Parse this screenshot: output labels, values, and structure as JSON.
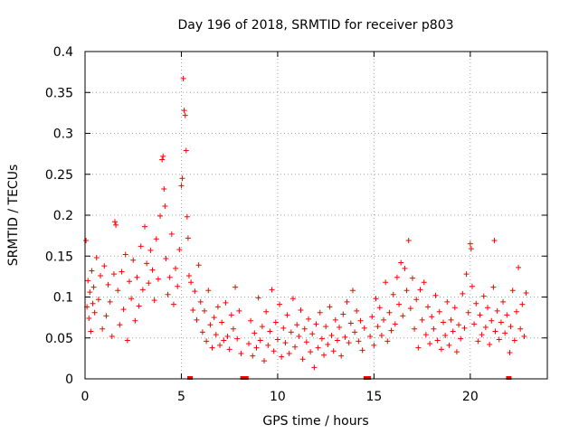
{
  "chart_data": {
    "type": "scatter",
    "title": "Day 196 of 2018, SRMTID for receiver p803",
    "xlabel": "GPS time / hours",
    "ylabel": "SRMTID / TECUs",
    "xlim": [
      0,
      24
    ],
    "ylim": [
      0,
      0.4
    ],
    "x_ticks": [
      0,
      5,
      10,
      15,
      20
    ],
    "y_ticks": [
      0,
      0.05,
      0.1,
      0.15,
      0.2,
      0.25,
      0.3,
      0.35,
      0.4
    ],
    "x_tick_labels": [
      "0",
      "5",
      "10",
      "15",
      "20"
    ],
    "y_tick_labels": [
      "0",
      "0.05",
      "0.1",
      "0.15",
      "0.2",
      "0.25",
      "0.3",
      "0.35",
      "0.4"
    ],
    "grid": true,
    "marker": "+",
    "color": "#ff0000",
    "series": [
      {
        "name": "SRMTID",
        "points": [
          [
            0.05,
            0.169
          ],
          [
            0.1,
            0.088
          ],
          [
            0.15,
            0.12
          ],
          [
            0.2,
            0.074
          ],
          [
            0.25,
            0.106
          ],
          [
            0.3,
            0.058
          ],
          [
            0.35,
            0.132
          ],
          [
            0.4,
            0.092
          ],
          [
            0.45,
            0.112
          ],
          [
            0.5,
            0.081
          ],
          [
            0.6,
            0.148
          ],
          [
            0.7,
            0.097
          ],
          [
            0.8,
            0.126
          ],
          [
            0.9,
            0.061
          ],
          [
            1.0,
            0.138
          ],
          [
            1.1,
            0.077
          ],
          [
            1.2,
            0.115
          ],
          [
            1.3,
            0.094
          ],
          [
            1.4,
            0.052
          ],
          [
            1.5,
            0.128
          ],
          [
            1.55,
            0.192
          ],
          [
            1.6,
            0.188
          ],
          [
            1.7,
            0.108
          ],
          [
            1.8,
            0.066
          ],
          [
            1.9,
            0.131
          ],
          [
            2.0,
            0.085
          ],
          [
            2.1,
            0.152
          ],
          [
            2.2,
            0.047
          ],
          [
            2.3,
            0.119
          ],
          [
            2.4,
            0.098
          ],
          [
            2.5,
            0.145
          ],
          [
            2.6,
            0.071
          ],
          [
            2.7,
            0.124
          ],
          [
            2.8,
            0.089
          ],
          [
            2.9,
            0.162
          ],
          [
            3.0,
            0.109
          ],
          [
            3.1,
            0.186
          ],
          [
            3.2,
            0.141
          ],
          [
            3.3,
            0.117
          ],
          [
            3.4,
            0.157
          ],
          [
            3.5,
            0.133
          ],
          [
            3.6,
            0.096
          ],
          [
            3.7,
            0.171
          ],
          [
            3.8,
            0.122
          ],
          [
            3.9,
            0.199
          ],
          [
            4.0,
            0.268
          ],
          [
            4.05,
            0.272
          ],
          [
            4.1,
            0.232
          ],
          [
            4.15,
            0.211
          ],
          [
            4.2,
            0.147
          ],
          [
            4.3,
            0.103
          ],
          [
            4.4,
            0.124
          ],
          [
            4.5,
            0.177
          ],
          [
            4.6,
            0.091
          ],
          [
            4.7,
            0.135
          ],
          [
            4.8,
            0.113
          ],
          [
            4.9,
            0.158
          ],
          [
            5.0,
            0.236
          ],
          [
            5.05,
            0.245
          ],
          [
            5.1,
            0.367
          ],
          [
            5.15,
            0.328
          ],
          [
            5.2,
            0.322
          ],
          [
            5.25,
            0.279
          ],
          [
            5.3,
            0.198
          ],
          [
            5.35,
            0.172
          ],
          [
            5.4,
            0.126
          ],
          [
            5.45,
            0.001
          ],
          [
            5.5,
            0.118
          ],
          [
            5.6,
            0.084
          ],
          [
            5.7,
            0.107
          ],
          [
            5.8,
            0.072
          ],
          [
            5.9,
            0.139
          ],
          [
            6.0,
            0.094
          ],
          [
            6.1,
            0.057
          ],
          [
            6.2,
            0.083
          ],
          [
            6.3,
            0.046
          ],
          [
            6.4,
            0.108
          ],
          [
            6.5,
            0.066
          ],
          [
            6.6,
            0.038
          ],
          [
            6.7,
            0.075
          ],
          [
            6.8,
            0.054
          ],
          [
            6.9,
            0.088
          ],
          [
            7.0,
            0.041
          ],
          [
            7.1,
            0.069
          ],
          [
            7.2,
            0.047
          ],
          [
            7.3,
            0.093
          ],
          [
            7.4,
            0.052
          ],
          [
            7.5,
            0.036
          ],
          [
            7.6,
            0.078
          ],
          [
            7.7,
            0.061
          ],
          [
            7.8,
            0.112
          ],
          [
            7.9,
            0.049
          ],
          [
            8.0,
            0.083
          ],
          [
            8.1,
            0.031
          ],
          [
            8.2,
            0.001
          ],
          [
            8.35,
            0.001
          ],
          [
            8.5,
            0.043
          ],
          [
            8.6,
            0.071
          ],
          [
            8.7,
            0.028
          ],
          [
            8.8,
            0.056
          ],
          [
            8.9,
            0.038
          ],
          [
            9.0,
            0.099
          ],
          [
            9.1,
            0.047
          ],
          [
            9.2,
            0.064
          ],
          [
            9.3,
            0.022
          ],
          [
            9.4,
            0.082
          ],
          [
            9.5,
            0.041
          ],
          [
            9.6,
            0.058
          ],
          [
            9.7,
            0.109
          ],
          [
            9.8,
            0.034
          ],
          [
            9.9,
            0.069
          ],
          [
            10.0,
            0.048
          ],
          [
            10.1,
            0.091
          ],
          [
            10.2,
            0.027
          ],
          [
            10.3,
            0.062
          ],
          [
            10.4,
            0.044
          ],
          [
            10.5,
            0.078
          ],
          [
            10.6,
            0.031
          ],
          [
            10.7,
            0.057
          ],
          [
            10.8,
            0.098
          ],
          [
            10.9,
            0.039
          ],
          [
            11.0,
            0.066
          ],
          [
            11.1,
            0.052
          ],
          [
            11.2,
            0.084
          ],
          [
            11.3,
            0.024
          ],
          [
            11.4,
            0.061
          ],
          [
            11.5,
            0.045
          ],
          [
            11.6,
            0.073
          ],
          [
            11.7,
            0.033
          ],
          [
            11.8,
            0.055
          ],
          [
            11.9,
            0.014
          ],
          [
            12.0,
            0.067
          ],
          [
            12.1,
            0.038
          ],
          [
            12.2,
            0.081
          ],
          [
            12.3,
            0.049
          ],
          [
            12.4,
            0.029
          ],
          [
            12.5,
            0.064
          ],
          [
            12.6,
            0.042
          ],
          [
            12.7,
            0.088
          ],
          [
            12.8,
            0.053
          ],
          [
            12.9,
            0.034
          ],
          [
            13.0,
            0.072
          ],
          [
            13.1,
            0.047
          ],
          [
            13.2,
            0.063
          ],
          [
            13.3,
            0.028
          ],
          [
            13.4,
            0.079
          ],
          [
            13.5,
            0.051
          ],
          [
            13.6,
            0.094
          ],
          [
            13.7,
            0.044
          ],
          [
            13.8,
            0.068
          ],
          [
            13.9,
            0.108
          ],
          [
            14.0,
            0.057
          ],
          [
            14.1,
            0.083
          ],
          [
            14.2,
            0.046
          ],
          [
            14.3,
            0.071
          ],
          [
            14.4,
            0.035
          ],
          [
            14.5,
            0.062
          ],
          [
            14.6,
            0.001
          ],
          [
            14.7,
            0.001
          ],
          [
            14.8,
            0.052
          ],
          [
            14.9,
            0.076
          ],
          [
            15.0,
            0.041
          ],
          [
            15.1,
            0.098
          ],
          [
            15.2,
            0.064
          ],
          [
            15.3,
            0.087
          ],
          [
            15.4,
            0.053
          ],
          [
            15.5,
            0.072
          ],
          [
            15.6,
            0.118
          ],
          [
            15.7,
            0.046
          ],
          [
            15.8,
            0.081
          ],
          [
            15.9,
            0.059
          ],
          [
            16.0,
            0.103
          ],
          [
            16.1,
            0.067
          ],
          [
            16.2,
            0.124
          ],
          [
            16.3,
            0.091
          ],
          [
            16.4,
            0.142
          ],
          [
            16.5,
            0.077
          ],
          [
            16.6,
            0.135
          ],
          [
            16.7,
            0.108
          ],
          [
            16.8,
            0.169
          ],
          [
            16.9,
            0.086
          ],
          [
            17.0,
            0.123
          ],
          [
            17.1,
            0.061
          ],
          [
            17.2,
            0.097
          ],
          [
            17.3,
            0.038
          ],
          [
            17.4,
            0.109
          ],
          [
            17.5,
            0.072
          ],
          [
            17.6,
            0.118
          ],
          [
            17.7,
            0.054
          ],
          [
            17.8,
            0.088
          ],
          [
            17.9,
            0.043
          ],
          [
            18.0,
            0.076
          ],
          [
            18.1,
            0.061
          ],
          [
            18.2,
            0.102
          ],
          [
            18.3,
            0.047
          ],
          [
            18.4,
            0.082
          ],
          [
            18.5,
            0.036
          ],
          [
            18.6,
            0.069
          ],
          [
            18.7,
            0.053
          ],
          [
            18.8,
            0.094
          ],
          [
            18.9,
            0.041
          ],
          [
            19.0,
            0.072
          ],
          [
            19.1,
            0.058
          ],
          [
            19.2,
            0.087
          ],
          [
            19.3,
            0.033
          ],
          [
            19.4,
            0.066
          ],
          [
            19.5,
            0.049
          ],
          [
            19.6,
            0.104
          ],
          [
            19.7,
            0.062
          ],
          [
            19.8,
            0.128
          ],
          [
            19.9,
            0.081
          ],
          [
            20.0,
            0.165
          ],
          [
            20.05,
            0.159
          ],
          [
            20.1,
            0.113
          ],
          [
            20.2,
            0.067
          ],
          [
            20.3,
            0.092
          ],
          [
            20.4,
            0.046
          ],
          [
            20.5,
            0.078
          ],
          [
            20.6,
            0.054
          ],
          [
            20.7,
            0.101
          ],
          [
            20.8,
            0.063
          ],
          [
            20.9,
            0.087
          ],
          [
            21.0,
            0.042
          ],
          [
            21.1,
            0.071
          ],
          [
            21.2,
            0.112
          ],
          [
            21.25,
            0.169
          ],
          [
            21.3,
            0.058
          ],
          [
            21.4,
            0.083
          ],
          [
            21.5,
            0.048
          ],
          [
            21.6,
            0.069
          ],
          [
            21.7,
            0.094
          ],
          [
            21.8,
            0.056
          ],
          [
            21.9,
            0.078
          ],
          [
            22.0,
            0.001
          ],
          [
            22.05,
            0.032
          ],
          [
            22.1,
            0.064
          ],
          [
            22.2,
            0.108
          ],
          [
            22.3,
            0.047
          ],
          [
            22.4,
            0.082
          ],
          [
            22.5,
            0.136
          ],
          [
            22.6,
            0.061
          ],
          [
            22.7,
            0.091
          ],
          [
            22.8,
            0.052
          ],
          [
            22.9,
            0.105
          ]
        ]
      }
    ]
  }
}
